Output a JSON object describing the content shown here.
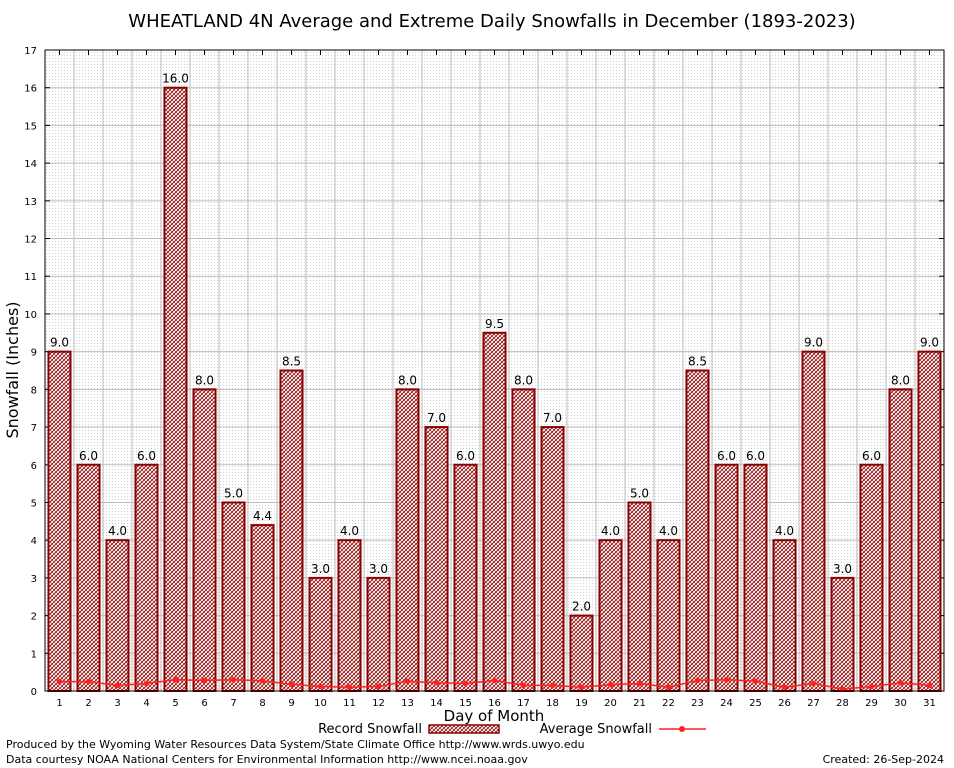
{
  "chart_data": {
    "type": "bar",
    "title": "WHEATLAND 4N Average and Extreme Daily Snowfalls in December (1893-2023)",
    "xlabel": "Day of Month",
    "ylabel": "Snowfall (Inches)",
    "ylim": [
      0,
      17
    ],
    "yticks": [
      "0",
      "1",
      "2",
      "3",
      "4",
      "5",
      "6",
      "7",
      "8",
      "9",
      "10",
      "11",
      "12",
      "13",
      "14",
      "15",
      "16",
      "17"
    ],
    "categories": [
      "1",
      "2",
      "3",
      "4",
      "5",
      "6",
      "7",
      "8",
      "9",
      "10",
      "11",
      "12",
      "13",
      "14",
      "15",
      "16",
      "17",
      "18",
      "19",
      "20",
      "21",
      "22",
      "23",
      "24",
      "25",
      "26",
      "27",
      "28",
      "29",
      "30",
      "31"
    ],
    "series": [
      {
        "name": "Record Snowfall",
        "type": "bar",
        "color": "#8b0000",
        "values": [
          9.0,
          6.0,
          4.0,
          6.0,
          16.0,
          8.0,
          5.0,
          4.4,
          8.5,
          3.0,
          4.0,
          3.0,
          8.0,
          7.0,
          6.0,
          9.5,
          8.0,
          7.0,
          2.0,
          4.0,
          5.0,
          4.0,
          8.5,
          6.0,
          6.0,
          4.0,
          9.0,
          3.0,
          6.0,
          8.0,
          9.0
        ],
        "labels": [
          "9.0",
          "6.0",
          "4.0",
          "6.0",
          "16.0",
          "8.0",
          "5.0",
          "4.4",
          "8.5",
          "3.0",
          "4.0",
          "3.0",
          "8.0",
          "7.0",
          "6.0",
          "9.5",
          "8.0",
          "7.0",
          "2.0",
          "4.0",
          "5.0",
          "4.0",
          "8.5",
          "6.0",
          "6.0",
          "4.0",
          "9.0",
          "3.0",
          "6.0",
          "8.0",
          "9.0"
        ]
      },
      {
        "name": "Average Snowfall",
        "type": "line",
        "color": "#ff2020",
        "values": [
          0.25,
          0.25,
          0.15,
          0.2,
          0.3,
          0.28,
          0.3,
          0.27,
          0.18,
          0.12,
          0.1,
          0.12,
          0.26,
          0.22,
          0.2,
          0.28,
          0.15,
          0.15,
          0.1,
          0.17,
          0.2,
          0.1,
          0.28,
          0.3,
          0.26,
          0.1,
          0.2,
          0.05,
          0.12,
          0.22,
          0.15
        ]
      }
    ],
    "grid": true,
    "legend": "bottom-center"
  },
  "footer": {
    "produced_by": "Produced by the Wyoming Water Resources Data System/State Climate Office http://www.wrds.uwyo.edu",
    "courtesy": "Data courtesy NOAA National Centers for Environmental Information http://www.ncei.noaa.gov",
    "created": "Created:  26-Sep-2024"
  }
}
